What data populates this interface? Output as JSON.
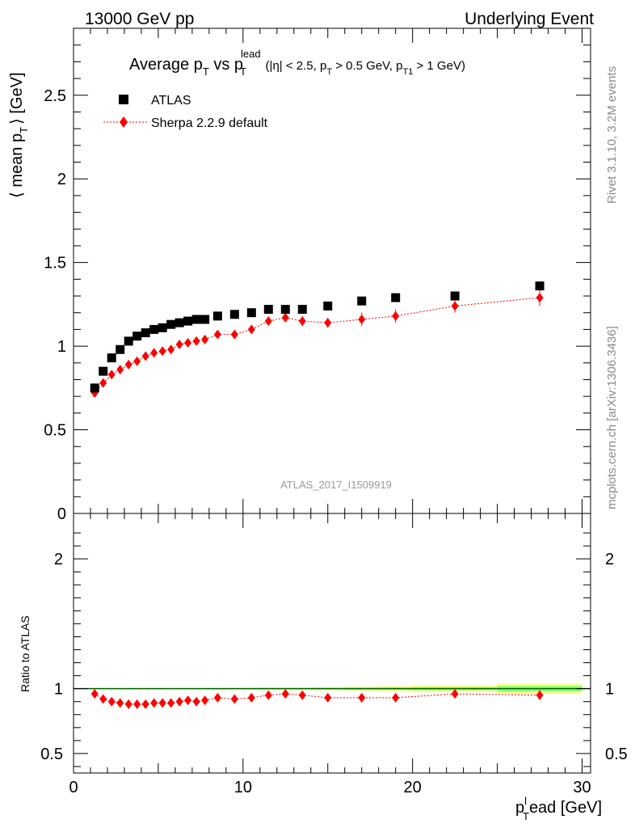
{
  "header": {
    "left": "13000 GeV pp",
    "right": "Underlying Event"
  },
  "title": {
    "prefix": "Average p",
    "mid": " vs p",
    "sup": "lead",
    "cuts_1": "(|η| < 2.5, p",
    "cuts_2": " > 0.5 GeV, p",
    "cuts_3": " > 1 GeV)",
    "sub_t": "T",
    "sub_t1": "T1"
  },
  "side_text": {
    "rivet": "Rivet 3.1.10,  3.2M events",
    "mcplots": "mcplots.cern.ch [arXiv:1306.3436]"
  },
  "watermark": "ATLAS_2017_I1509919",
  "legend": {
    "atlas": "ATLAS",
    "sherpa": "Sherpa 2.2.9 default"
  },
  "colors": {
    "data": "#000000",
    "mc": "#ff0000",
    "band_inner": "#7fff7f",
    "band_outer": "#ffff80",
    "unity": "#006400"
  },
  "chart_data": {
    "type": "scatter",
    "main": {
      "ylabel_main": "⟨ mean p",
      "ylabel_sub": "T",
      "ylabel_unit": "⟩ [GeV]",
      "xlim": [
        0,
        30.5
      ],
      "ylim": [
        0,
        2.9
      ],
      "yticks": [
        0.5,
        1,
        1.5,
        2,
        2.5
      ],
      "ytick_labels": [
        "0.5",
        "1",
        "1.5",
        "2",
        "2.5"
      ],
      "series": [
        {
          "name": "ATLAS",
          "marker": "square",
          "x": [
            1.25,
            1.75,
            2.25,
            2.75,
            3.25,
            3.75,
            4.25,
            4.75,
            5.25,
            5.75,
            6.25,
            6.75,
            7.25,
            7.75,
            8.5,
            9.5,
            10.5,
            11.5,
            12.5,
            13.5,
            15,
            17,
            19,
            22.5,
            27.5
          ],
          "y": [
            0.75,
            0.85,
            0.93,
            0.98,
            1.03,
            1.06,
            1.08,
            1.1,
            1.11,
            1.13,
            1.14,
            1.15,
            1.16,
            1.16,
            1.18,
            1.19,
            1.2,
            1.22,
            1.22,
            1.22,
            1.24,
            1.27,
            1.29,
            1.3,
            1.36
          ]
        },
        {
          "name": "Sherpa 2.2.9 default",
          "marker": "diamond",
          "x": [
            1.25,
            1.75,
            2.25,
            2.75,
            3.25,
            3.75,
            4.25,
            4.75,
            5.25,
            5.75,
            6.25,
            6.75,
            7.25,
            7.75,
            8.5,
            9.5,
            10.5,
            11.5,
            12.5,
            13.5,
            15,
            17,
            19,
            22.5,
            27.5
          ],
          "y": [
            0.72,
            0.78,
            0.83,
            0.86,
            0.89,
            0.91,
            0.94,
            0.96,
            0.97,
            0.98,
            1.01,
            1.02,
            1.03,
            1.04,
            1.07,
            1.07,
            1.1,
            1.15,
            1.17,
            1.15,
            1.14,
            1.16,
            1.18,
            1.24,
            1.29
          ],
          "yerr": [
            0.01,
            0.01,
            0.01,
            0.01,
            0.01,
            0.01,
            0.01,
            0.01,
            0.01,
            0.01,
            0.01,
            0.01,
            0.01,
            0.01,
            0.02,
            0.02,
            0.02,
            0.02,
            0.02,
            0.03,
            0.03,
            0.04,
            0.04,
            0.04,
            0.05
          ]
        }
      ]
    },
    "ratio": {
      "ylabel": "Ratio to ATLAS",
      "ylim": [
        0.35,
        2.35
      ],
      "yticks": [
        0.5,
        1,
        2
      ],
      "ytick_labels": [
        "0.5",
        "1",
        "2"
      ],
      "right_tick_labels": [
        "0.5",
        "1",
        "2"
      ],
      "x": [
        1.25,
        1.75,
        2.25,
        2.75,
        3.25,
        3.75,
        4.25,
        4.75,
        5.25,
        5.75,
        6.25,
        6.75,
        7.25,
        7.75,
        8.5,
        9.5,
        10.5,
        11.5,
        12.5,
        13.5,
        15,
        17,
        19,
        22.5,
        27.5
      ],
      "y": [
        0.96,
        0.92,
        0.9,
        0.89,
        0.88,
        0.88,
        0.88,
        0.89,
        0.89,
        0.89,
        0.9,
        0.91,
        0.9,
        0.91,
        0.93,
        0.92,
        0.93,
        0.95,
        0.96,
        0.95,
        0.93,
        0.93,
        0.93,
        0.96,
        0.95
      ],
      "yerr": [
        0.01,
        0.01,
        0.01,
        0.01,
        0.01,
        0.01,
        0.01,
        0.01,
        0.01,
        0.01,
        0.01,
        0.01,
        0.01,
        0.01,
        0.015,
        0.015,
        0.015,
        0.015,
        0.015,
        0.02,
        0.02,
        0.03,
        0.03,
        0.03,
        0.04
      ],
      "band_x": [
        [
          1,
          1.5
        ],
        [
          1.5,
          2
        ],
        [
          2,
          2.5
        ],
        [
          2.5,
          3
        ],
        [
          3,
          3.5
        ],
        [
          3.5,
          4
        ],
        [
          4,
          4.5
        ],
        [
          4.5,
          5
        ],
        [
          5,
          5.5
        ],
        [
          5.5,
          6
        ],
        [
          6,
          6.5
        ],
        [
          6.5,
          7
        ],
        [
          7,
          7.5
        ],
        [
          7.5,
          8
        ],
        [
          8,
          9
        ],
        [
          9,
          10
        ],
        [
          10,
          11
        ],
        [
          11,
          12
        ],
        [
          12,
          13
        ],
        [
          13,
          14
        ],
        [
          14,
          16
        ],
        [
          16,
          18
        ],
        [
          18,
          20
        ],
        [
          20,
          25
        ],
        [
          25,
          30
        ]
      ],
      "band_inner_half": [
        0.003,
        0.003,
        0.003,
        0.003,
        0.003,
        0.003,
        0.003,
        0.003,
        0.003,
        0.003,
        0.003,
        0.003,
        0.003,
        0.003,
        0.004,
        0.004,
        0.004,
        0.005,
        0.005,
        0.005,
        0.006,
        0.008,
        0.009,
        0.012,
        0.02
      ],
      "band_outer_half": [
        0.006,
        0.006,
        0.006,
        0.006,
        0.006,
        0.006,
        0.006,
        0.006,
        0.006,
        0.006,
        0.006,
        0.006,
        0.006,
        0.006,
        0.007,
        0.007,
        0.008,
        0.009,
        0.01,
        0.01,
        0.012,
        0.015,
        0.018,
        0.025,
        0.04
      ]
    },
    "xaxis": {
      "label_main": "p",
      "label_sup": "l",
      "label_sub": "T",
      "label_rest": "ead [GeV]",
      "ticks": [
        0,
        10,
        20,
        30
      ],
      "tick_labels": [
        "0",
        "10",
        "20",
        "30"
      ]
    }
  }
}
